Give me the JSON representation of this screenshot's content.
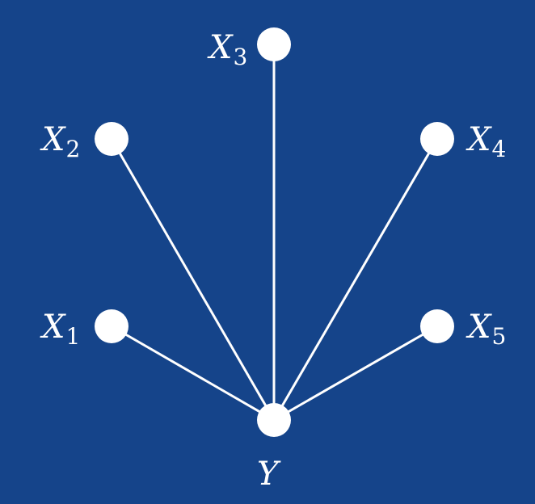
{
  "diagram": {
    "background_color": "#15448a",
    "foreground_color": "#ffffff",
    "center_node": {
      "id": "Y",
      "label": "Y",
      "subscript": ""
    },
    "nodes": [
      {
        "id": "X1",
        "label": "X",
        "subscript": "1"
      },
      {
        "id": "X2",
        "label": "X",
        "subscript": "2"
      },
      {
        "id": "X3",
        "label": "X",
        "subscript": "3"
      },
      {
        "id": "X4",
        "label": "X",
        "subscript": "4"
      },
      {
        "id": "X5",
        "label": "X",
        "subscript": "5"
      }
    ],
    "edges": [
      {
        "from": "X1",
        "to": "Y"
      },
      {
        "from": "X2",
        "to": "Y"
      },
      {
        "from": "X3",
        "to": "Y"
      },
      {
        "from": "X4",
        "to": "Y"
      },
      {
        "from": "X5",
        "to": "Y"
      }
    ]
  }
}
